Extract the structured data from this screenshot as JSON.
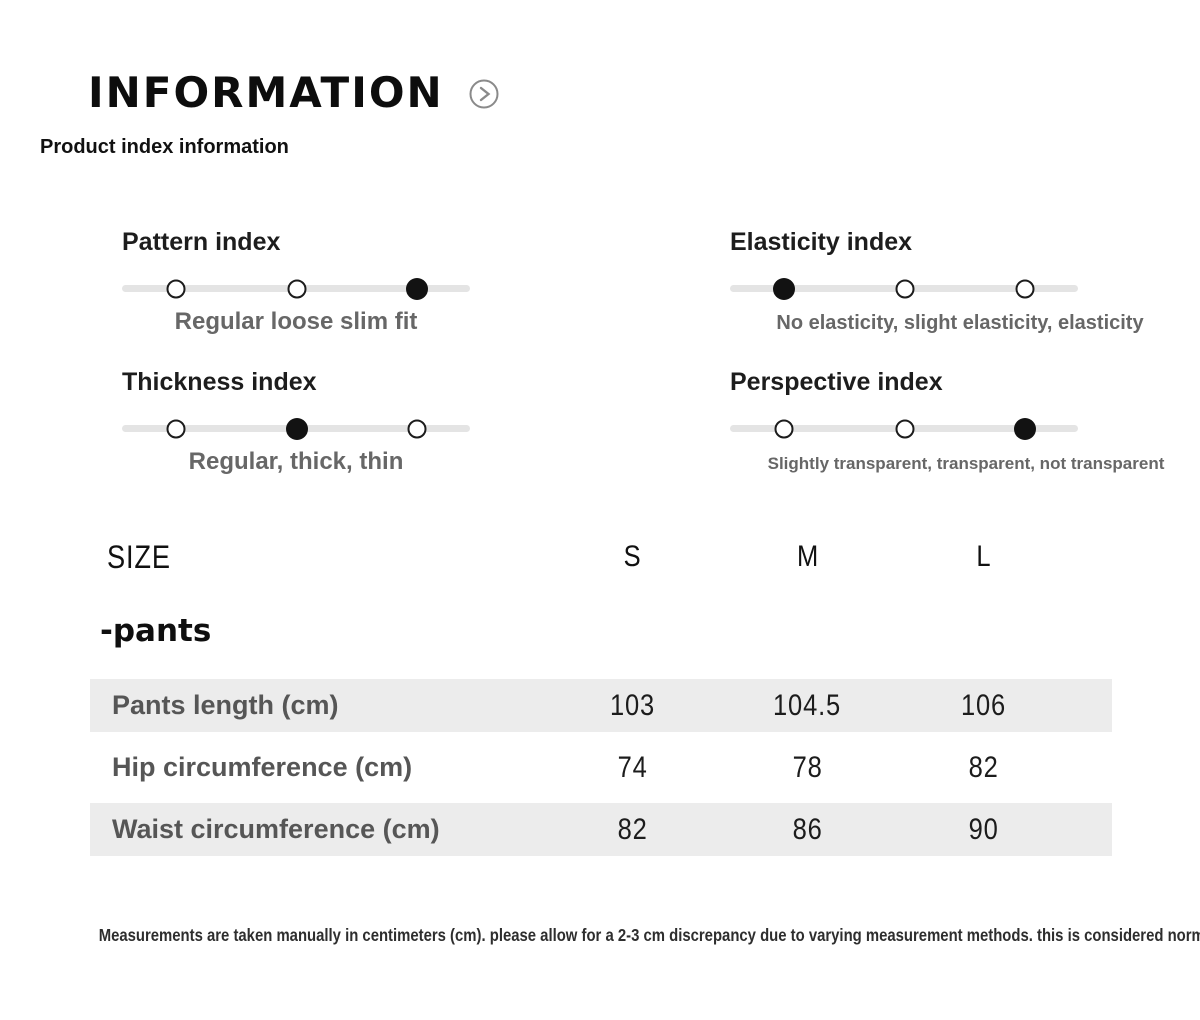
{
  "header": {
    "title": "INFORMATION",
    "subtitle": "Product index information"
  },
  "icons": {
    "title_icon": "chevron-right-circle-icon"
  },
  "indices": [
    {
      "label": "Pattern index",
      "caption": "Regular loose slim fit",
      "dots": [
        "empty",
        "empty",
        "filled"
      ]
    },
    {
      "label": "Elasticity index",
      "caption": "No elasticity, slight elasticity, elasticity",
      "dots": [
        "filled",
        "empty",
        "empty"
      ]
    },
    {
      "label": "Thickness index",
      "caption": "Regular, thick, thin",
      "dots": [
        "empty",
        "filled",
        "empty"
      ]
    },
    {
      "label": "Perspective index",
      "caption": "Slightly transparent, transparent, not transparent",
      "dots": [
        "empty",
        "empty",
        "filled"
      ]
    }
  ],
  "size_table": {
    "size_label": "SIZE",
    "columns": [
      "S",
      "M",
      "L"
    ],
    "group_label": "-pants",
    "rows": [
      {
        "label": "Pants length (cm)",
        "values": [
          "103",
          "104.5",
          "106"
        ]
      },
      {
        "label": "Hip circumference (cm)",
        "values": [
          "74",
          "78",
          "82"
        ]
      },
      {
        "label": "Waist circumference (cm)",
        "values": [
          "82",
          "86",
          "90"
        ]
      }
    ]
  },
  "footer": {
    "note": "Measurements are taken manually in centimeters (cm). please allow for a 2-3 cm discrepancy due to varying measurement methods. this is considered normal"
  },
  "colors": {
    "text_primary": "#0d0d0d",
    "caption_gray": "#676767",
    "row_label_gray": "#565656",
    "row_background": "#ececec",
    "track_gray": "#e4e4e4",
    "icon_gray": "#8a8a8a"
  }
}
